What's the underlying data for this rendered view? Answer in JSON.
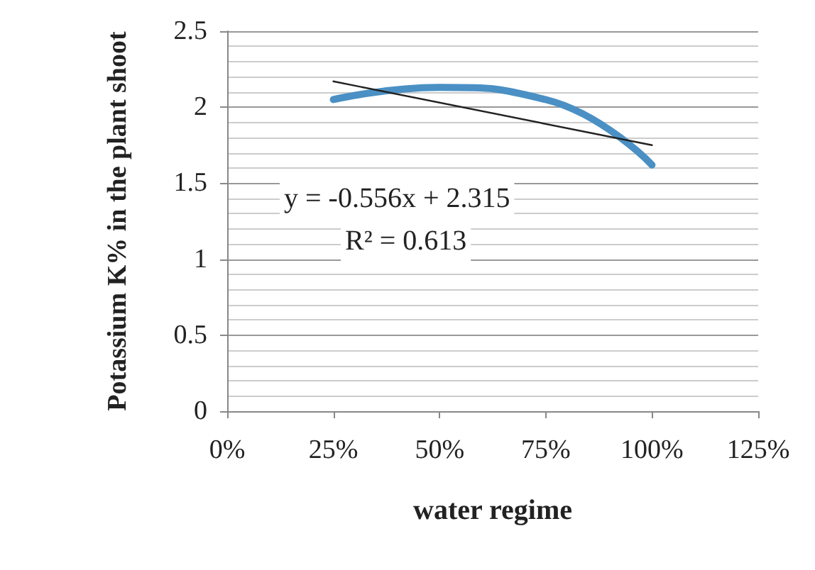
{
  "chart_data": {
    "type": "line",
    "xlabel": "water regime",
    "ylabel": "Potassium K% in the plant shoot",
    "series": [
      {
        "color": "#4a90c4",
        "x": [
          0.25,
          0.5,
          0.75,
          1
        ],
        "values": [
          2.05,
          2.13,
          2.05,
          1.62
        ]
      },
      {
        "color": "#222222",
        "x": [
          0.25,
          1
        ],
        "values": [
          2.17,
          1.75
        ]
      }
    ],
    "annotations": [
      "y = -0.556x + 2.315",
      "R² = 0.613"
    ],
    "xlim": [
      0,
      1.25
    ],
    "xticks": [
      {
        "value": 0,
        "label": "0%"
      },
      {
        "value": 0.25,
        "label": "25%"
      },
      {
        "value": 0.5,
        "label": "50%"
      },
      {
        "value": 0.75,
        "label": "75%"
      },
      {
        "value": 1,
        "label": "100%"
      },
      {
        "value": 1.25,
        "label": "125%"
      }
    ],
    "ylim": [
      0,
      2.5
    ],
    "yticks": [
      0,
      0.5,
      1,
      1.5,
      2,
      2.5
    ],
    "grid": "y",
    "marker": "none",
    "line_style": "solid"
  }
}
